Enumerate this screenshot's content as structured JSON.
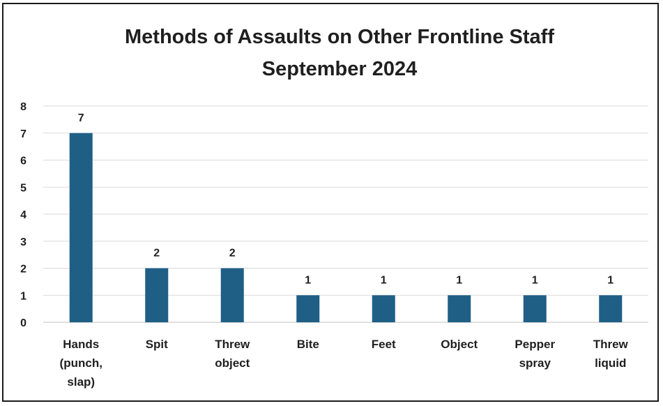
{
  "chart_data": {
    "type": "bar",
    "title": "Methods of Assaults on Other Frontline Staff",
    "subtitle": "September 2024",
    "xlabel": "",
    "ylabel": "",
    "ylim": [
      0,
      8
    ],
    "yticks": [
      "0",
      "1",
      "2",
      "3",
      "4",
      "5",
      "6",
      "7",
      "8"
    ],
    "grid": true,
    "legend": "none",
    "bar_color": "#1f5f86",
    "categories": [
      [
        "Hands",
        "(punch,",
        "slap)"
      ],
      [
        "Spit"
      ],
      [
        "Threw",
        "object"
      ],
      [
        "Bite"
      ],
      [
        "Feet"
      ],
      [
        "Object"
      ],
      [
        "Pepper",
        "spray"
      ],
      [
        "Threw",
        "liquid"
      ]
    ],
    "values": [
      7,
      2,
      2,
      1,
      1,
      1,
      1,
      1
    ],
    "data_labels": [
      "7",
      "2",
      "2",
      "1",
      "1",
      "1",
      "1",
      "1"
    ]
  }
}
